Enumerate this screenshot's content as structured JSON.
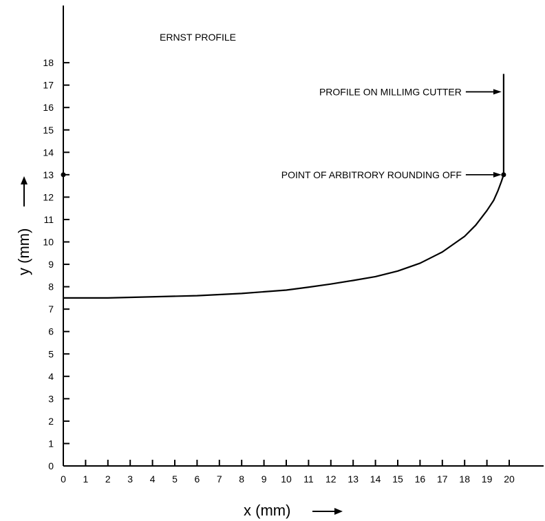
{
  "chart_data": {
    "type": "line",
    "title": "ERNST PROFILE",
    "xlabel": "x (mm)",
    "ylabel": "y (mm)",
    "xlim": [
      0,
      21
    ],
    "ylim": [
      0,
      19
    ],
    "x_ticks": [
      0,
      1,
      2,
      3,
      4,
      5,
      6,
      7,
      8,
      9,
      10,
      11,
      12,
      13,
      14,
      15,
      16,
      17,
      18,
      19,
      20
    ],
    "y_ticks": [
      0,
      1,
      2,
      3,
      4,
      5,
      6,
      7,
      8,
      9,
      10,
      11,
      12,
      13,
      14,
      15,
      16,
      17,
      18
    ],
    "grid": false,
    "series": [
      {
        "x": [
          0,
          2,
          4,
          6,
          8,
          10,
          11,
          12,
          13,
          14,
          15,
          16,
          17,
          18,
          18.5,
          19,
          19.3,
          19.5,
          19.65,
          19.75,
          19.75
        ],
        "y": [
          7.5,
          7.5,
          7.55,
          7.6,
          7.7,
          7.85,
          7.98,
          8.12,
          8.28,
          8.45,
          8.7,
          9.05,
          9.55,
          10.25,
          10.75,
          11.4,
          11.85,
          12.3,
          12.7,
          13.0,
          17.5
        ]
      }
    ],
    "points": [
      {
        "x": 0,
        "y": 13
      },
      {
        "x": 19.75,
        "y": 13
      }
    ],
    "annotations": [
      {
        "text": "PROFILE ON MILLIMG CUTTER",
        "x": 19.75,
        "y": 16.7
      },
      {
        "text": "POINT OF ARBITRORY ROUNDING OFF",
        "x": 19.75,
        "y": 13
      }
    ],
    "arrows": [
      {
        "label_of": "xlabel",
        "glyph": "→"
      },
      {
        "label_of": "ylabel",
        "glyph": "→"
      }
    ],
    "line_color": "#000000"
  }
}
